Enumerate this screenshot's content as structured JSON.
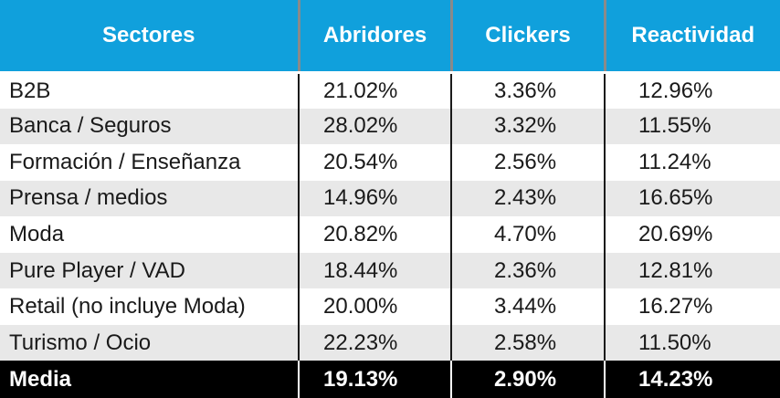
{
  "headers": [
    "Sectores",
    "Abridores",
    "Clickers",
    "Reactividad"
  ],
  "rows": [
    [
      "B2B",
      "21.02%",
      "3.36%",
      "12.96%"
    ],
    [
      "Banca / Seguros",
      "28.02%",
      "3.32%",
      "11.55%"
    ],
    [
      "Formación / Enseñanza",
      "20.54%",
      "2.56%",
      "11.24%"
    ],
    [
      "Prensa / medios",
      "14.96%",
      "2.43%",
      "16.65%"
    ],
    [
      "Moda",
      "20.82%",
      "4.70%",
      "20.69%"
    ],
    [
      "Pure Player / VAD",
      "18.44%",
      "2.36%",
      "12.81%"
    ],
    [
      "Retail (no incluye Moda)",
      "20.00%",
      "3.44%",
      "16.27%"
    ],
    [
      "Turismo / Ocio",
      "22.23%",
      "2.58%",
      "11.50%"
    ]
  ],
  "total": [
    "Media",
    "19.13%",
    "2.90%",
    "14.23%"
  ],
  "colors": {
    "header_bg": "#10a0dc",
    "stripe_bg": "#e8e8e8",
    "total_bg": "#000000"
  }
}
